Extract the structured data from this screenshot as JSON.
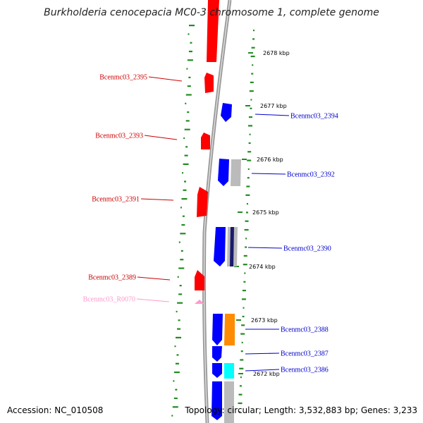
{
  "title": "Burkholderia cenocepacia MC0-3 chromosome 1, complete genome",
  "footer": {
    "accession": "Accession: NC_010508",
    "summary": "Topology: circular; Length: 3,532,883 bp; Genes: 3,233"
  },
  "colors": {
    "forward_gene": "#ff0000",
    "reverse_gene": "#0000ff",
    "rna_gene": "#ff99cc",
    "backbone": "#999999",
    "gc_skew": "#228b22",
    "orange_feature": "#ff8c00",
    "cyan_feature": "#00ffff",
    "grey_feature": "#bbbbbb"
  },
  "scale_labels": [
    "2678 kbp",
    "2677 kbp",
    "2676 kbp",
    "2675 kbp",
    "2674 kbp",
    "2673 kbp",
    "2672 kbp"
  ],
  "gene_labels": {
    "left": [
      "Bcenmc03_2395",
      "Bcenmc03_2393",
      "Bcenmc03_2391",
      "Bcenmc03_2389",
      "Bcenmc03_R0070"
    ],
    "right": [
      "Bcenmc03_2394",
      "Bcenmc03_2392",
      "Bcenmc03_2390",
      "Bcenmc03_2388",
      "Bcenmc03_2387",
      "Bcenmc03_2386"
    ]
  }
}
